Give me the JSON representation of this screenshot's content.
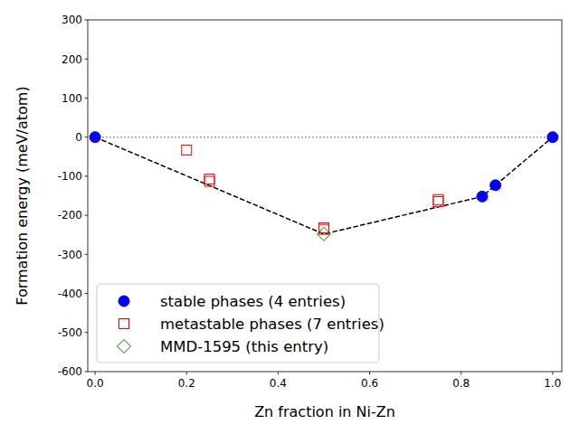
{
  "chart_data": {
    "type": "scatter",
    "x_label": "Zn fraction in Ni-Zn",
    "y_label": "Formation energy (meV/atom)",
    "xlim": [
      -0.016,
      1.02
    ],
    "ylim": [
      -600,
      300
    ],
    "xticks": [
      {
        "value": 0,
        "label": "0.0"
      },
      {
        "value": 0.2,
        "label": "0.2"
      },
      {
        "value": 0.4,
        "label": "0.4"
      },
      {
        "value": 0.6,
        "label": "0.6"
      },
      {
        "value": 0.8,
        "label": "0.8"
      },
      {
        "value": 1,
        "label": "1.0"
      }
    ],
    "yticks": [
      -600,
      -500,
      -400,
      -300,
      -200,
      -100,
      0,
      100,
      200,
      300
    ],
    "legend": "lower left",
    "grid": false,
    "series": [
      {
        "type": "line",
        "line_style": "dotted",
        "color": "#808080",
        "x": [
          0,
          1
        ],
        "values": [
          0,
          0
        ]
      },
      {
        "type": "line",
        "line_style": "dashed",
        "color": "#000000",
        "x": [
          0,
          0.5,
          0.846,
          0.875,
          1
        ],
        "values": [
          0,
          -248,
          -152,
          -123,
          0
        ]
      },
      {
        "type": "scatter",
        "name": "stable phases (4 entries)",
        "marker": "circle",
        "color": "#0000ff",
        "x": [
          0,
          0.846,
          0.875,
          1
        ],
        "values": [
          0,
          -152,
          -123,
          0
        ]
      },
      {
        "type": "scatter",
        "name": "metastable phases (7 entries)",
        "marker": "square",
        "color": "#ff0000",
        "x": [
          0.2,
          0.25,
          0.25,
          0.5,
          0.5,
          0.75,
          0.75
        ],
        "values": [
          -33,
          -107,
          -113,
          -232,
          -236,
          -160,
          -165
        ]
      },
      {
        "type": "scatter",
        "name": "MMD-1595 (this entry)",
        "marker": "diamond",
        "color": "#008000",
        "x": [
          0.5
        ],
        "values": [
          -248
        ]
      }
    ]
  }
}
